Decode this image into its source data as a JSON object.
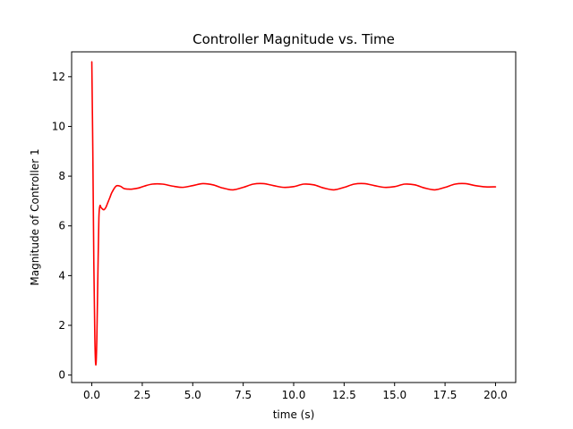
{
  "chart_data": {
    "type": "line",
    "title": "Controller Magnitude vs. Time",
    "xlabel": "time (s)",
    "ylabel": "Magnitude of Controller 1",
    "xlim": [
      -1.0,
      21.0
    ],
    "ylim": [
      -0.3,
      13.0
    ],
    "x_ticks": [
      0.0,
      2.5,
      5.0,
      7.5,
      10.0,
      12.5,
      15.0,
      17.5,
      20.0
    ],
    "x_tick_labels": [
      "0.0",
      "2.5",
      "5.0",
      "7.5",
      "10.0",
      "12.5",
      "15.0",
      "17.5",
      "20.0"
    ],
    "y_ticks": [
      0,
      2,
      4,
      6,
      8,
      10,
      12
    ],
    "y_tick_labels": [
      "0",
      "2",
      "4",
      "6",
      "8",
      "10",
      "12"
    ],
    "grid": false,
    "series": [
      {
        "color": "#ff0000",
        "x": [
          0.0,
          0.05,
          0.1,
          0.15,
          0.2,
          0.25,
          0.3,
          0.35,
          0.4,
          0.45,
          0.5,
          0.6,
          0.7,
          0.8,
          0.9,
          1.0,
          1.2,
          1.4,
          1.6,
          1.8,
          2.0,
          2.3,
          2.6,
          3.0,
          3.5,
          4.0,
          4.5,
          5.0,
          5.5,
          6.0,
          6.5,
          7.0,
          7.5,
          8.0,
          8.5,
          9.0,
          9.5,
          10.0,
          10.5,
          11.0,
          11.5,
          12.0,
          12.5,
          13.0,
          13.5,
          14.0,
          14.5,
          15.0,
          15.5,
          16.0,
          16.5,
          17.0,
          17.5,
          18.0,
          18.5,
          19.0,
          19.5,
          20.0
        ],
        "y": [
          12.6,
          9.0,
          4.5,
          1.5,
          0.4,
          1.5,
          4.0,
          6.3,
          6.8,
          6.75,
          6.7,
          6.65,
          6.75,
          6.95,
          7.15,
          7.35,
          7.6,
          7.6,
          7.5,
          7.48,
          7.48,
          7.52,
          7.6,
          7.68,
          7.68,
          7.6,
          7.55,
          7.62,
          7.7,
          7.65,
          7.52,
          7.45,
          7.55,
          7.68,
          7.7,
          7.62,
          7.55,
          7.58,
          7.68,
          7.65,
          7.52,
          7.45,
          7.55,
          7.68,
          7.7,
          7.62,
          7.55,
          7.58,
          7.68,
          7.65,
          7.52,
          7.45,
          7.55,
          7.68,
          7.7,
          7.62,
          7.57,
          7.57
        ]
      }
    ]
  }
}
